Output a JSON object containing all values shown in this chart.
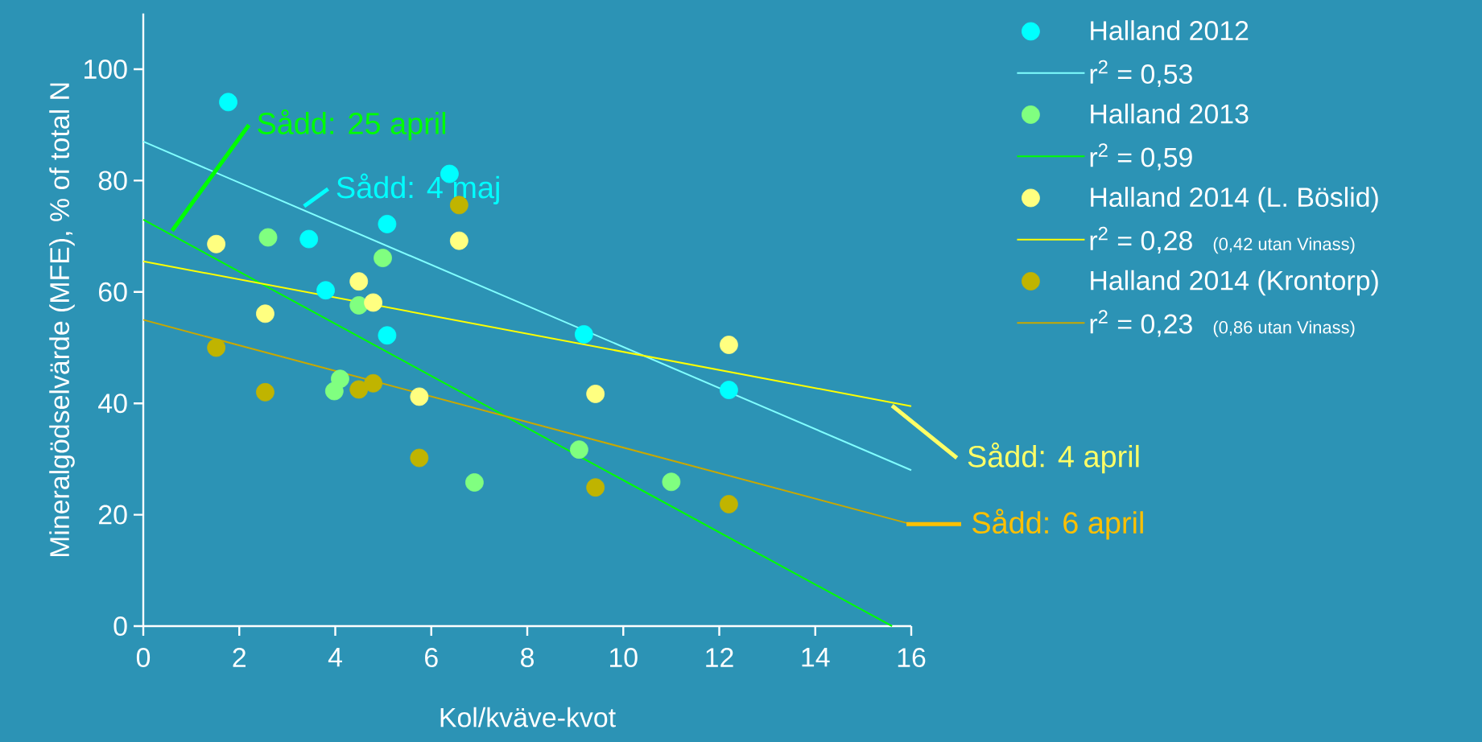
{
  "chart_data": {
    "type": "scatter",
    "xlabel": "Kol/kväve-kvot",
    "ylabel": "Mineralgödselvärde (MFE), % of total N",
    "xlim": [
      0,
      16
    ],
    "ylim": [
      0,
      110
    ],
    "xticks": [
      0,
      2,
      4,
      6,
      8,
      10,
      12,
      14,
      16
    ],
    "yticks": [
      0,
      20,
      40,
      60,
      80,
      100
    ],
    "legend": "right",
    "grid": false,
    "series": [
      {
        "name": "Halland 2012",
        "marker": "circle",
        "color": "#00ffff",
        "x": [
          1.77,
          3.45,
          3.8,
          5.08,
          5.08,
          6.38,
          9.18,
          12.2
        ],
        "values": [
          94.1,
          69.5,
          60.3,
          72.2,
          52.2,
          81.2,
          52.4,
          42.4
        ]
      },
      {
        "name": "r$^{2}$ = 0,53",
        "type": "line",
        "marker": "none",
        "color": "#80ffff",
        "x": [
          0,
          16
        ],
        "values": [
          87,
          28
        ]
      },
      {
        "name": "Halland 2013",
        "marker": "circle",
        "color": "#80ff80",
        "x": [
          2.6,
          4.99,
          4.49,
          4.1,
          3.98,
          6.9,
          9.08,
          11.0
        ],
        "values": [
          69.8,
          66.1,
          57.6,
          44.4,
          42.2,
          25.8,
          31.7,
          25.9
        ]
      },
      {
        "name": "r$^{2}$ = 0,59",
        "type": "line",
        "marker": "none",
        "color": "#00ff00",
        "x": [
          0,
          15.6
        ],
        "values": [
          73,
          0
        ]
      },
      {
        "name": "Halland 2014 (L. Böslid)",
        "marker": "circle",
        "color": "#ffff80",
        "x": [
          1.52,
          2.54,
          4.49,
          4.79,
          5.75,
          6.58,
          9.42,
          12.2
        ],
        "values": [
          68.6,
          56.1,
          61.9,
          58.1,
          41.2,
          69.2,
          41.7,
          50.5
        ]
      },
      {
        "name": "r$^{2}$ = 0,28",
        "type": "line",
        "marker": "none",
        "color": "#ffff00",
        "x": [
          0,
          16
        ],
        "values": [
          65.5,
          39.5
        ]
      },
      {
        "name": "Halland 2014 (Krontorp)",
        "marker": "circle",
        "color": "#c0b400",
        "x": [
          1.52,
          2.54,
          4.49,
          4.79,
          5.75,
          6.58,
          9.42,
          12.2
        ],
        "values": [
          50.0,
          42.0,
          42.5,
          43.6,
          30.2,
          75.6,
          24.9,
          21.9
        ]
      },
      {
        "name": "r$^{2}$ = 0,23",
        "type": "line",
        "marker": "none",
        "color": "#c8a800",
        "x": [
          0,
          16
        ],
        "values": [
          55,
          18.3
        ]
      }
    ],
    "annotations": [
      {
        "text": "Sådd: 25 april",
        "x": 0.6,
        "y": 71
      },
      {
        "text": "Sådd: 4 maj",
        "x": 3.35,
        "y": 75.4
      },
      {
        "text": "Sådd: 4 april",
        "x": 15.6,
        "y": 39.6
      },
      {
        "text": "Sådd: 6 april",
        "x": 15.9,
        "y": 18.3
      },
      "(0,42 utan Vinass)",
      "(0,86 utan Vinass)"
    ]
  }
}
